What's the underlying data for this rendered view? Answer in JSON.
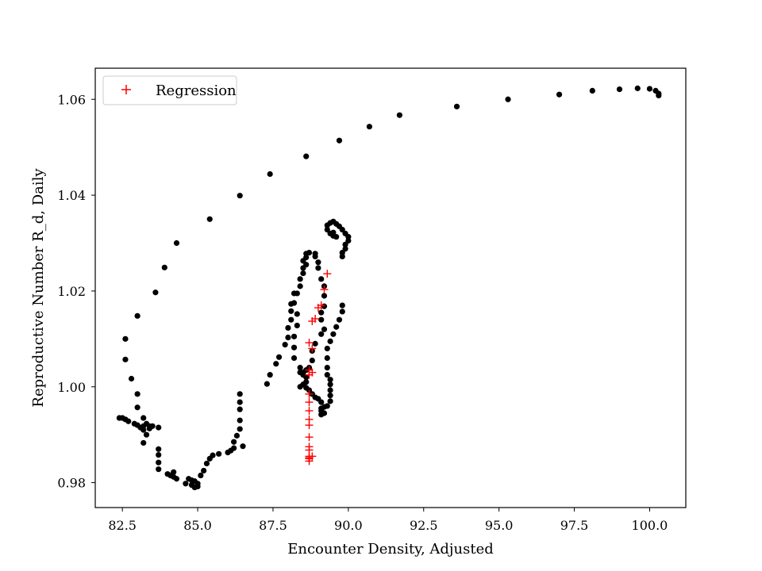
{
  "chart_data": {
    "type": "scatter",
    "title": "",
    "xlabel": "Encounter Density, Adjusted",
    "ylabel": "Reproductive Number R_d, Daily",
    "xlim": [
      81.6,
      101.2
    ],
    "ylim": [
      0.9748,
      1.0665
    ],
    "xticks": [
      82.5,
      85.0,
      87.5,
      90.0,
      92.5,
      95.0,
      97.5,
      100.0
    ],
    "xtick_labels": [
      "82.5",
      "85.0",
      "87.5",
      "90.0",
      "92.5",
      "95.0",
      "97.5",
      "100.0"
    ],
    "yticks": [
      0.98,
      1.0,
      1.02,
      1.04,
      1.06
    ],
    "ytick_labels": [
      "0.98",
      "1.00",
      "1.02",
      "1.04",
      "1.06"
    ],
    "grid": false,
    "legend": {
      "placement": "top-left",
      "entries": [
        "Regression"
      ]
    },
    "series": [
      {
        "marker": "dot",
        "color": "#000000",
        "points": [
          [
            100.3,
            1.0608
          ],
          [
            100.3,
            1.0612
          ],
          [
            100.2,
            1.0618
          ],
          [
            100.0,
            1.0622
          ],
          [
            99.6,
            1.0623
          ],
          [
            99.0,
            1.0621
          ],
          [
            98.1,
            1.0618
          ],
          [
            97.0,
            1.061
          ],
          [
            95.3,
            1.06
          ],
          [
            93.6,
            1.0585
          ],
          [
            91.7,
            1.0567
          ],
          [
            90.7,
            1.0543
          ],
          [
            89.7,
            1.0514
          ],
          [
            88.6,
            1.0481
          ],
          [
            87.4,
            1.0444
          ],
          [
            86.4,
            1.0399
          ],
          [
            85.4,
            1.035
          ],
          [
            84.3,
            1.03
          ],
          [
            83.9,
            1.0249
          ],
          [
            83.6,
            1.0197
          ],
          [
            83.0,
            1.0148
          ],
          [
            82.6,
            1.01
          ],
          [
            82.6,
            1.0057
          ],
          [
            82.8,
            1.0017
          ],
          [
            83.0,
            0.9985
          ],
          [
            83.0,
            0.9957
          ],
          [
            82.4,
            0.9935
          ],
          [
            82.5,
            0.9935
          ],
          [
            82.6,
            0.9932
          ],
          [
            82.7,
            0.9928
          ],
          [
            82.9,
            0.9923
          ],
          [
            83.0,
            0.992
          ],
          [
            83.1,
            0.9915
          ],
          [
            83.2,
            0.9918
          ],
          [
            83.3,
            0.9923
          ],
          [
            83.4,
            0.9918
          ],
          [
            83.2,
            0.991
          ],
          [
            83.3,
            0.99
          ],
          [
            83.2,
            0.9883
          ],
          [
            83.4,
            0.9913
          ],
          [
            83.5,
            0.9918
          ],
          [
            83.2,
            0.9935
          ],
          [
            83.7,
            0.9915
          ],
          [
            83.7,
            0.987
          ],
          [
            83.7,
            0.9858
          ],
          [
            83.7,
            0.9842
          ],
          [
            83.7,
            0.9828
          ],
          [
            84.0,
            0.9818
          ],
          [
            84.1,
            0.9815
          ],
          [
            84.2,
            0.9812
          ],
          [
            84.2,
            0.9822
          ],
          [
            84.3,
            0.9808
          ],
          [
            84.6,
            0.9798
          ],
          [
            84.7,
            0.9808
          ],
          [
            84.8,
            0.9805
          ],
          [
            84.9,
            0.9803
          ],
          [
            84.8,
            0.9795
          ],
          [
            85.0,
            0.9792
          ],
          [
            84.9,
            0.979
          ],
          [
            85.0,
            0.9798
          ],
          [
            85.1,
            0.9815
          ],
          [
            85.2,
            0.9825
          ],
          [
            85.3,
            0.984
          ],
          [
            85.4,
            0.985
          ],
          [
            85.5,
            0.9857
          ],
          [
            85.7,
            0.986
          ],
          [
            86.0,
            0.9863
          ],
          [
            86.1,
            0.9867
          ],
          [
            86.2,
            0.9872
          ],
          [
            86.2,
            0.9885
          ],
          [
            86.3,
            0.9898
          ],
          [
            86.5,
            0.9876
          ],
          [
            86.4,
            0.9912
          ],
          [
            86.4,
            0.993
          ],
          [
            86.4,
            0.9953
          ],
          [
            86.4,
            0.9968
          ],
          [
            86.4,
            0.9985
          ],
          [
            87.3,
            1.0006
          ],
          [
            87.4,
            1.0025
          ],
          [
            87.6,
            1.0048
          ],
          [
            87.7,
            1.0062
          ],
          [
            87.9,
            1.0088
          ],
          [
            88.0,
            1.0103
          ],
          [
            88.0,
            1.0123
          ],
          [
            88.1,
            1.014
          ],
          [
            88.1,
            1.0158
          ],
          [
            88.1,
            1.0173
          ],
          [
            88.2,
            1.0195
          ],
          [
            88.3,
            1.0195
          ],
          [
            88.4,
            1.021
          ],
          [
            88.4,
            1.0225
          ],
          [
            88.5,
            1.0237
          ],
          [
            88.5,
            1.0248
          ],
          [
            88.6,
            1.0255
          ],
          [
            88.5,
            1.0263
          ],
          [
            88.6,
            1.027
          ],
          [
            88.6,
            1.0278
          ],
          [
            88.7,
            1.028
          ],
          [
            88.9,
            1.0278
          ],
          [
            88.9,
            1.0272
          ],
          [
            89.0,
            1.026
          ],
          [
            89.0,
            1.0248
          ],
          [
            89.1,
            1.0225
          ],
          [
            89.2,
            1.021
          ],
          [
            89.2,
            1.019
          ],
          [
            89.2,
            1.0168
          ],
          [
            89.1,
            1.0155
          ],
          [
            89.1,
            1.014
          ],
          [
            89.2,
            1.012
          ],
          [
            89.1,
            1.011
          ],
          [
            88.9,
            1.009
          ],
          [
            88.8,
            1.0075
          ],
          [
            88.8,
            1.0055
          ],
          [
            88.7,
            1.004
          ],
          [
            88.6,
            1.0035
          ],
          [
            88.4,
            1.003
          ],
          [
            88.5,
            1.0025
          ],
          [
            88.6,
            1.002
          ],
          [
            88.6,
            1.001
          ],
          [
            88.5,
            1.0005
          ],
          [
            88.4,
            1.0
          ],
          [
            88.6,
            0.9998
          ],
          [
            88.7,
            0.9993
          ],
          [
            88.8,
            0.9985
          ],
          [
            88.9,
            0.9978
          ],
          [
            89.0,
            0.9975
          ],
          [
            89.1,
            0.9968
          ],
          [
            89.1,
            0.9955
          ],
          [
            89.1,
            0.9942
          ],
          [
            89.2,
            0.9945
          ],
          [
            89.1,
            0.995
          ],
          [
            89.2,
            0.9958
          ],
          [
            89.3,
            0.996
          ],
          [
            89.4,
            0.997
          ],
          [
            89.4,
            0.9982
          ],
          [
            89.4,
            0.9993
          ],
          [
            89.4,
            1.0005
          ],
          [
            89.4,
            1.0015
          ],
          [
            89.3,
            1.0025
          ],
          [
            89.3,
            1.004
          ],
          [
            89.3,
            1.006
          ],
          [
            89.3,
            1.008
          ],
          [
            89.4,
            1.0095
          ],
          [
            89.5,
            1.011
          ],
          [
            89.6,
            1.0125
          ],
          [
            89.7,
            1.014
          ],
          [
            89.8,
            1.0157
          ],
          [
            89.8,
            1.017
          ],
          [
            88.2,
            1.0175
          ],
          [
            88.3,
            1.0152
          ],
          [
            88.3,
            1.0128
          ],
          [
            88.2,
            1.0105
          ],
          [
            88.2,
            1.0082
          ],
          [
            88.2,
            1.006
          ],
          [
            88.4,
            1.004
          ],
          [
            88.5,
            1.003
          ],
          [
            89.4,
            1.0342
          ],
          [
            89.5,
            1.0345
          ],
          [
            89.6,
            1.034
          ],
          [
            89.7,
            1.0335
          ],
          [
            89.8,
            1.0328
          ],
          [
            89.9,
            1.032
          ],
          [
            90.0,
            1.0313
          ],
          [
            90.0,
            1.0305
          ],
          [
            89.9,
            1.0297
          ],
          [
            89.9,
            1.0288
          ],
          [
            89.8,
            1.028
          ],
          [
            89.8,
            1.0272
          ],
          [
            89.4,
            1.032
          ],
          [
            89.5,
            1.0315
          ],
          [
            89.6,
            1.0313
          ],
          [
            89.5,
            1.0322
          ],
          [
            89.3,
            1.0328
          ],
          [
            89.3,
            1.0337
          ]
        ]
      },
      {
        "name": "Regression",
        "marker": "plus",
        "color": "#ff0000",
        "points": [
          [
            89.3,
            1.0236
          ],
          [
            89.2,
            1.0203
          ],
          [
            89.1,
            1.017
          ],
          [
            89.0,
            1.0165
          ],
          [
            88.9,
            1.0142
          ],
          [
            88.8,
            1.0137
          ],
          [
            88.7,
            1.0092
          ],
          [
            88.8,
            1.008
          ],
          [
            88.7,
            1.0035
          ],
          [
            88.8,
            1.003
          ],
          [
            88.7,
            1.0025
          ],
          [
            88.7,
            0.9985
          ],
          [
            88.7,
            0.9968
          ],
          [
            88.7,
            0.995
          ],
          [
            88.7,
            0.9932
          ],
          [
            88.7,
            0.992
          ],
          [
            88.7,
            0.9895
          ],
          [
            88.7,
            0.9875
          ],
          [
            88.7,
            0.9868
          ],
          [
            88.7,
            0.9855
          ],
          [
            88.7,
            0.985
          ],
          [
            88.7,
            0.9845
          ],
          [
            88.7,
            0.9852
          ],
          [
            88.8,
            0.9855
          ]
        ]
      }
    ]
  }
}
